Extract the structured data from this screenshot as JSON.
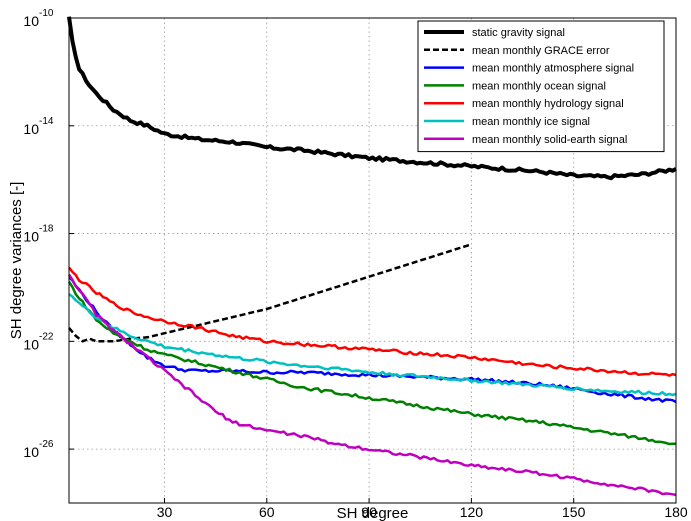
{
  "chart_data": {
    "type": "line",
    "xlabel": "SH degree",
    "ylabel": "SH degree variances [-]",
    "xlim": [
      2,
      180
    ],
    "ylim_exponent": [
      -10,
      -28
    ],
    "y_scale": "log",
    "grid": true,
    "legend_position": "top-right",
    "x_ticks": [
      "30",
      "60",
      "90",
      "120",
      "150",
      "180"
    ],
    "y_ticks": [
      {
        "base": "10",
        "exp": "-10"
      },
      {
        "base": "10",
        "exp": "-14"
      },
      {
        "base": "10",
        "exp": "-18"
      },
      {
        "base": "10",
        "exp": "-22"
      },
      {
        "base": "10",
        "exp": "-26"
      }
    ],
    "series": [
      {
        "name": "static gravity signal",
        "color": "#000000",
        "style": "solid-thick",
        "x": [
          2,
          3,
          5,
          8,
          10,
          15,
          20,
          25,
          30,
          40,
          50,
          60,
          70,
          80,
          90,
          100,
          110,
          120,
          130,
          140,
          150,
          160,
          170,
          175,
          180
        ],
        "log10": [
          -10.0,
          -10.9,
          -11.9,
          -12.5,
          -12.8,
          -13.4,
          -13.8,
          -14.0,
          -14.3,
          -14.5,
          -14.6,
          -14.8,
          -14.9,
          -15.05,
          -15.2,
          -15.3,
          -15.4,
          -15.5,
          -15.6,
          -15.7,
          -15.85,
          -15.9,
          -15.8,
          -15.7,
          -15.6
        ]
      },
      {
        "name": "mean monthly GRACE error",
        "color": "#000000",
        "style": "dashed",
        "x": [
          2,
          4,
          6,
          8,
          10,
          15,
          20,
          25,
          30,
          40,
          50,
          60,
          70,
          80,
          90,
          100,
          110,
          120
        ],
        "log10": [
          -21.5,
          -21.8,
          -22.0,
          -21.9,
          -22.0,
          -22.0,
          -21.9,
          -21.85,
          -21.7,
          -21.4,
          -21.1,
          -20.8,
          -20.4,
          -20.0,
          -19.6,
          -19.2,
          -18.8,
          -18.4
        ]
      },
      {
        "name": "mean monthly atmosphere signal",
        "color": "#0000ff",
        "style": "solid",
        "x": [
          2,
          5,
          10,
          15,
          20,
          25,
          30,
          35,
          40,
          50,
          60,
          70,
          80,
          90,
          100,
          110,
          120,
          130,
          140,
          150,
          160,
          170,
          180
        ],
        "log10": [
          -19.6,
          -20.1,
          -20.9,
          -21.6,
          -22.1,
          -22.6,
          -22.9,
          -23.05,
          -23.1,
          -23.1,
          -23.15,
          -23.15,
          -23.2,
          -23.25,
          -23.3,
          -23.35,
          -23.4,
          -23.5,
          -23.6,
          -23.75,
          -23.95,
          -24.1,
          -24.25
        ]
      },
      {
        "name": "mean monthly ocean signal",
        "color": "#008000",
        "style": "solid",
        "x": [
          2,
          5,
          10,
          15,
          20,
          25,
          30,
          40,
          50,
          60,
          70,
          80,
          90,
          100,
          110,
          120,
          130,
          140,
          150,
          160,
          170,
          180
        ],
        "log10": [
          -19.8,
          -20.4,
          -21.2,
          -21.7,
          -22.0,
          -22.3,
          -22.5,
          -22.8,
          -23.1,
          -23.4,
          -23.7,
          -23.9,
          -24.1,
          -24.3,
          -24.5,
          -24.7,
          -24.85,
          -25.0,
          -25.2,
          -25.4,
          -25.6,
          -25.8
        ]
      },
      {
        "name": "mean monthly hydrology signal",
        "color": "#ff0000",
        "style": "solid",
        "x": [
          2,
          5,
          10,
          15,
          20,
          25,
          30,
          40,
          50,
          60,
          70,
          80,
          90,
          100,
          110,
          120,
          130,
          140,
          150,
          160,
          170,
          180
        ],
        "log10": [
          -19.3,
          -19.7,
          -20.2,
          -20.6,
          -20.9,
          -21.1,
          -21.25,
          -21.5,
          -21.8,
          -22.0,
          -22.1,
          -22.2,
          -22.3,
          -22.4,
          -22.5,
          -22.6,
          -22.75,
          -22.9,
          -23.0,
          -23.1,
          -23.2,
          -23.25
        ]
      },
      {
        "name": "mean monthly ice signal",
        "color": "#00c0c0",
        "style": "solid",
        "x": [
          2,
          5,
          10,
          15,
          20,
          25,
          30,
          40,
          50,
          60,
          70,
          80,
          90,
          100,
          110,
          120,
          130,
          140,
          150,
          160,
          170,
          180
        ],
        "log10": [
          -20.2,
          -20.6,
          -21.1,
          -21.5,
          -21.8,
          -22.0,
          -22.2,
          -22.4,
          -22.6,
          -22.75,
          -22.9,
          -23.0,
          -23.15,
          -23.25,
          -23.35,
          -23.45,
          -23.55,
          -23.65,
          -23.75,
          -23.85,
          -23.9,
          -23.95
        ]
      },
      {
        "name": "mean monthly solid-earth signal",
        "color": "#c000c0",
        "style": "solid",
        "x": [
          2,
          5,
          10,
          15,
          20,
          25,
          30,
          35,
          40,
          45,
          50,
          60,
          70,
          80,
          90,
          100,
          110,
          120,
          130,
          140,
          150,
          160,
          170,
          180
        ],
        "log10": [
          -19.5,
          -20.1,
          -21.0,
          -21.6,
          -22.1,
          -22.6,
          -23.1,
          -23.6,
          -24.1,
          -24.6,
          -25.0,
          -25.3,
          -25.5,
          -25.8,
          -26.0,
          -26.2,
          -26.4,
          -26.6,
          -26.75,
          -26.9,
          -27.1,
          -27.3,
          -27.5,
          -27.7
        ]
      }
    ]
  }
}
